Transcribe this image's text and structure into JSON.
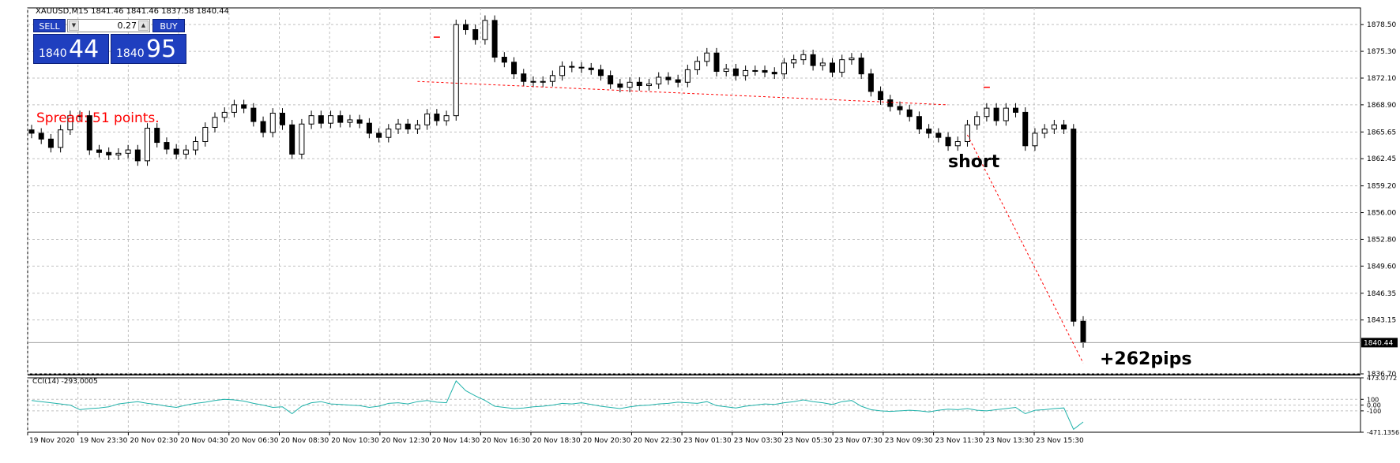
{
  "chart_header": {
    "title": "XAUUSD,M15  1841.46 1841.46 1837.58 1840.44"
  },
  "trade_panel": {
    "sell_label": "SELL",
    "buy_label": "BUY",
    "lot_value": "0.27",
    "sell_price_small": "1840",
    "sell_price_big": "44",
    "buy_price_small": "1840",
    "buy_price_big": "95"
  },
  "annotations": {
    "spread": "Spread: 51 points.",
    "short": "short",
    "pips": "+262pips"
  },
  "colors": {
    "background": "#ffffff",
    "grid": "#c0c0c0",
    "candle": "#000000",
    "indicator_line": "#20b2aa",
    "trade_line": "#ff0000",
    "panel_blue": "#1f3fbf",
    "price_tag_bg": "#000000"
  },
  "chart_data": [
    {
      "type": "candlestick",
      "symbol": "XAUUSD",
      "timeframe": "M15",
      "ylim": [
        1836.7,
        1880.5
      ],
      "y_ticks": [
        "1878.50",
        "1875.30",
        "1872.10",
        "1868.90",
        "1865.65",
        "1862.45",
        "1859.20",
        "1856.00",
        "1852.80",
        "1849.60",
        "1846.35",
        "1843.15",
        "1836.70"
      ],
      "current_price": "1840.44",
      "x_ticks": [
        "19 Nov 2020",
        "19 Nov 23:30",
        "20 Nov 02:30",
        "20 Nov 04:30",
        "20 Nov 06:30",
        "20 Nov 08:30",
        "20 Nov 10:30",
        "20 Nov 12:30",
        "20 Nov 14:30",
        "20 Nov 16:30",
        "20 Nov 18:30",
        "20 Nov 20:30",
        "20 Nov 22:30",
        "23 Nov 01:30",
        "23 Nov 03:30",
        "23 Nov 05:30",
        "23 Nov 07:30",
        "23 Nov 09:30",
        "23 Nov 11:30",
        "23 Nov 13:30",
        "23 Nov 15:30"
      ],
      "closes": [
        1865.5,
        1864.8,
        1863.8,
        1865.9,
        1867.6,
        1867.6,
        1863.5,
        1863.2,
        1862.9,
        1863.1,
        1863.5,
        1862.2,
        1866.1,
        1864.4,
        1863.6,
        1863.0,
        1863.5,
        1864.5,
        1866.2,
        1867.4,
        1868.0,
        1868.9,
        1868.5,
        1866.9,
        1865.6,
        1867.9,
        1866.5,
        1863.0,
        1866.6,
        1867.6,
        1866.7,
        1867.6,
        1866.8,
        1867.1,
        1866.7,
        1865.5,
        1865.0,
        1866.0,
        1866.6,
        1866.0,
        1866.5,
        1867.8,
        1867.0,
        1867.6,
        1878.5,
        1877.9,
        1876.7,
        1879.0,
        1874.6,
        1874.0,
        1872.6,
        1871.7,
        1871.6,
        1871.7,
        1872.4,
        1873.5,
        1873.4,
        1873.3,
        1873.1,
        1872.4,
        1871.4,
        1871.0,
        1871.6,
        1871.2,
        1871.4,
        1872.2,
        1871.9,
        1871.6,
        1873.1,
        1874.1,
        1875.1,
        1872.9,
        1873.2,
        1872.4,
        1873.0,
        1873.0,
        1872.8,
        1872.6,
        1873.9,
        1874.3,
        1874.9,
        1873.6,
        1873.9,
        1872.8,
        1874.3,
        1874.5,
        1872.6,
        1870.5,
        1869.5,
        1868.7,
        1868.3,
        1867.5,
        1866.0,
        1865.5,
        1865.0,
        1864.0,
        1864.5,
        1866.5,
        1867.5,
        1868.5,
        1867.0,
        1868.5,
        1868.0,
        1864.0,
        1865.5,
        1866.0,
        1866.5,
        1866.0,
        1843.0,
        1840.44
      ],
      "indicator": {
        "name": "CCI(14)",
        "current_value": "-293.0005",
        "y_ticks": [
          "473.0772",
          "100",
          "0.00",
          "-100",
          "-471.1356"
        ],
        "ylim": [
          -471.1356,
          473.0772
        ],
        "values": [
          80,
          60,
          40,
          20,
          0,
          -80,
          -60,
          -50,
          -30,
          20,
          40,
          60,
          30,
          10,
          -20,
          -40,
          0,
          30,
          50,
          80,
          100,
          90,
          70,
          30,
          0,
          -40,
          -30,
          -150,
          -20,
          40,
          60,
          20,
          10,
          0,
          -10,
          -40,
          -20,
          30,
          40,
          20,
          60,
          80,
          50,
          40,
          420,
          250,
          160,
          80,
          -20,
          -40,
          -60,
          -50,
          -30,
          -20,
          0,
          30,
          20,
          40,
          10,
          -20,
          -40,
          -60,
          -30,
          -10,
          0,
          20,
          30,
          50,
          40,
          30,
          60,
          -10,
          -30,
          -50,
          -20,
          0,
          20,
          10,
          40,
          60,
          90,
          60,
          40,
          10,
          60,
          80,
          -20,
          -80,
          -100,
          -110,
          -100,
          -90,
          -100,
          -120,
          -90,
          -70,
          -80,
          -60,
          -90,
          -100,
          -80,
          -60,
          -40,
          -150,
          -90,
          -80,
          -60,
          -50,
          -420,
          -293
        ]
      }
    }
  ]
}
